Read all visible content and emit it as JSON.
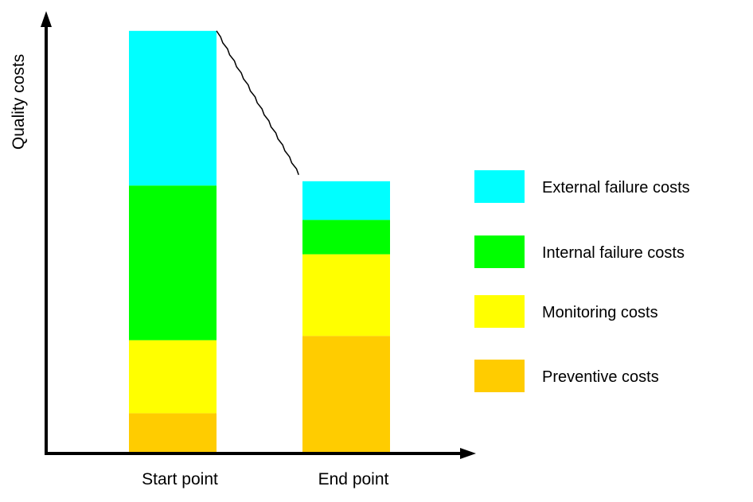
{
  "chart_data": {
    "type": "bar",
    "stacked": true,
    "categories": [
      "Start point",
      "End point"
    ],
    "ylabel": "Quality costs",
    "xlabel": "",
    "title": "",
    "ylim": [
      0,
      100
    ],
    "series": [
      {
        "name": "Preventive costs",
        "color": "#FFCC00",
        "values": [
          9,
          27
        ]
      },
      {
        "name": "Monitoring costs",
        "color": "#FFFF00",
        "values": [
          17,
          19
        ]
      },
      {
        "name": "Internal failure costs",
        "color": "#00FF00",
        "values": [
          36,
          8
        ]
      },
      {
        "name": "External failure costs",
        "color": "#00FFFF",
        "values": [
          36,
          9
        ]
      }
    ],
    "legend_order": [
      "External failure costs",
      "Internal failure costs",
      "Monitoring costs",
      "Preventive costs"
    ],
    "legend": "right",
    "grid": false,
    "trend_line": true,
    "y_ticks": false
  }
}
